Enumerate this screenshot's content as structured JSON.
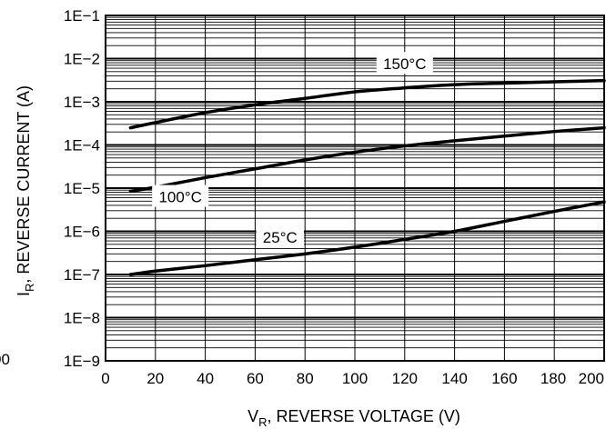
{
  "chart_data": {
    "type": "line",
    "title": "",
    "xlabel": {
      "main": "V",
      "sub": "R",
      "rest": ", REVERSE VOLTAGE (V)"
    },
    "ylabel": {
      "main": "I",
      "sub": "R",
      "rest": ", REVERSE CURRENT (A)"
    },
    "x_range": [
      0,
      200
    ],
    "y_range": [
      -9,
      -1
    ],
    "y_scale": "log",
    "grid": true,
    "x_ticks": [
      "0",
      "20",
      "40",
      "60",
      "80",
      "100",
      "120",
      "140",
      "160",
      "180",
      "200"
    ],
    "y_ticks": [
      {
        "exp": -1,
        "label": "1E−1"
      },
      {
        "exp": -2,
        "label": "1E−2"
      },
      {
        "exp": -3,
        "label": "1E−3"
      },
      {
        "exp": -4,
        "label": "1E−4"
      },
      {
        "exp": -5,
        "label": "1E−5"
      },
      {
        "exp": -6,
        "label": "1E−6"
      },
      {
        "exp": -7,
        "label": "1E−7"
      },
      {
        "exp": -8,
        "label": "1E−8"
      },
      {
        "exp": -9,
        "label": "1E−9"
      }
    ],
    "clipped_left_tick": "00",
    "series": [
      {
        "name": "150°C",
        "x": [
          10,
          20,
          40,
          60,
          80,
          100,
          120,
          140,
          160,
          180,
          200
        ],
        "y": [
          0.00025,
          0.00033,
          0.00056,
          0.00085,
          0.0012,
          0.0017,
          0.0021,
          0.0025,
          0.0027,
          0.0029,
          0.0031
        ],
        "label_at": [
          120,
          0.0076
        ]
      },
      {
        "name": "100°C",
        "x": [
          10,
          20,
          40,
          60,
          80,
          100,
          120,
          140,
          160,
          180,
          200
        ],
        "y": [
          8.5e-06,
          1.05e-05,
          1.75e-05,
          2.8e-05,
          4.5e-05,
          6.8e-05,
          9.5e-05,
          0.000125,
          0.00016,
          0.000205,
          0.00025
        ],
        "label_at": [
          30,
          6.3e-06
        ]
      },
      {
        "name": "25°C",
        "x": [
          10,
          20,
          40,
          60,
          80,
          100,
          120,
          140,
          160,
          180,
          200
        ],
        "y": [
          1e-07,
          1.2e-07,
          1.6e-07,
          2.2e-07,
          3e-07,
          4.3e-07,
          6.5e-07,
          1e-06,
          1.7e-06,
          2.9e-06,
          4.8e-06
        ],
        "label_at": [
          70,
          7.3e-07
        ]
      }
    ]
  }
}
